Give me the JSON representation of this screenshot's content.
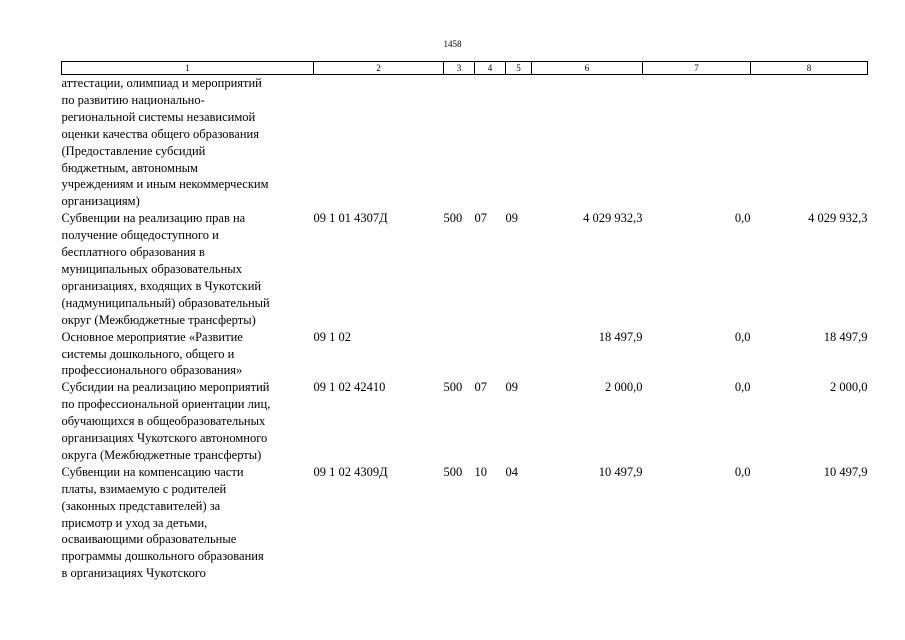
{
  "page_number": "1458",
  "header": [
    "1",
    "2",
    "3",
    "4",
    "5",
    "6",
    "7",
    "8"
  ],
  "rows": [
    {
      "name": "аттестации, олимпиад и мероприятий\nпо развитию национально-\nрегиональной системы независимой\nоценки качества общего образования\n(Предоставление субсидий\nбюджетным, автономным\nучреждениям и иным некоммерческим\nорганизациям)",
      "code": "",
      "c3": "",
      "c4": "",
      "c5": "",
      "c6": "",
      "c7": "",
      "c8": ""
    },
    {
      "name": "Субвенции на реализацию прав на\nполучение общедоступного и\nбесплатного образования в\nмуниципальных образовательных\nорганизациях, входящих в Чукотский\n(надмуниципальный) образовательный\nокруг (Межбюджетные трансферты)",
      "code": "09 1 01 4307Д",
      "c3": "500",
      "c4": "07",
      "c5": "09",
      "c6": "4 029 932,3",
      "c7": "0,0",
      "c8": "4 029 932,3"
    },
    {
      "name": "Основное мероприятие «Развитие\nсистемы дошкольного, общего и\nпрофессионального образования»",
      "code": "09 1 02",
      "c3": "",
      "c4": "",
      "c5": "",
      "c6": "18 497,9",
      "c7": "0,0",
      "c8": "18 497,9"
    },
    {
      "name": "Субсидии на реализацию мероприятий\nпо профессиональной ориентации лиц,\nобучающихся в общеобразовательных\nорганизациях Чукотского автономного\nокруга (Межбюджетные трансферты)",
      "code": "09 1 02 42410",
      "c3": "500",
      "c4": "07",
      "c5": "09",
      "c6": "2 000,0",
      "c7": "0,0",
      "c8": "2 000,0"
    },
    {
      "name": "Субвенции на компенсацию части\nплаты, взимаемую с родителей\n(законных представителей) за\nприсмотр и уход за детьми,\nосваивающими образовательные\nпрограммы дошкольного образования\nв организациях Чукотского",
      "code": "09 1 02 4309Д",
      "c3": "500",
      "c4": "10",
      "c5": "04",
      "c6": "10 497,9",
      "c7": "0,0",
      "c8": "10 497,9"
    }
  ]
}
